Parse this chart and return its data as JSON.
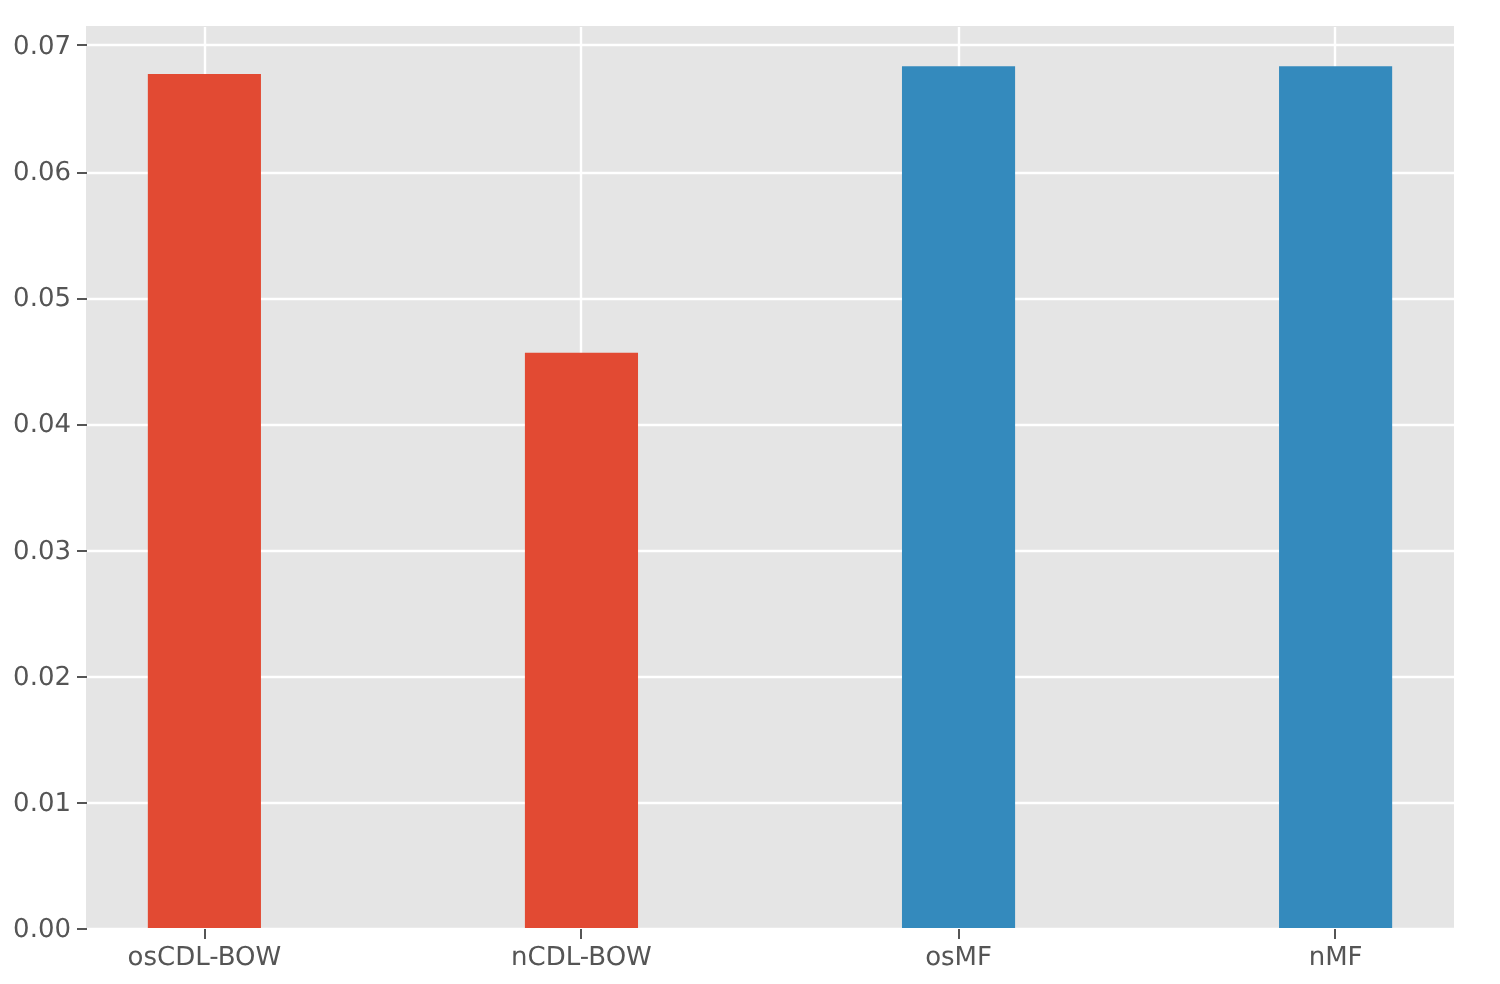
{
  "chart_data": {
    "type": "bar",
    "categories": [
      "osCDL-BOW",
      "nCDL-BOW",
      "osMF",
      "nMF"
    ],
    "values": [
      0.0677,
      0.0456,
      0.0683,
      0.0683
    ],
    "colors": [
      "#e24a33",
      "#e24a33",
      "#348abd",
      "#348abd"
    ],
    "ylim": [
      0,
      0.0715
    ],
    "yticks": [
      {
        "value": 0,
        "label": "0.00"
      },
      {
        "value": 0.01,
        "label": "0.01"
      },
      {
        "value": 0.02,
        "label": "0.02"
      },
      {
        "value": 0.03,
        "label": "0.03"
      },
      {
        "value": 0.04,
        "label": "0.04"
      },
      {
        "value": 0.05,
        "label": "0.05"
      },
      {
        "value": 0.06,
        "label": "0.06"
      },
      {
        "value": 0.07,
        "label": "0.07"
      }
    ],
    "grid": true
  }
}
